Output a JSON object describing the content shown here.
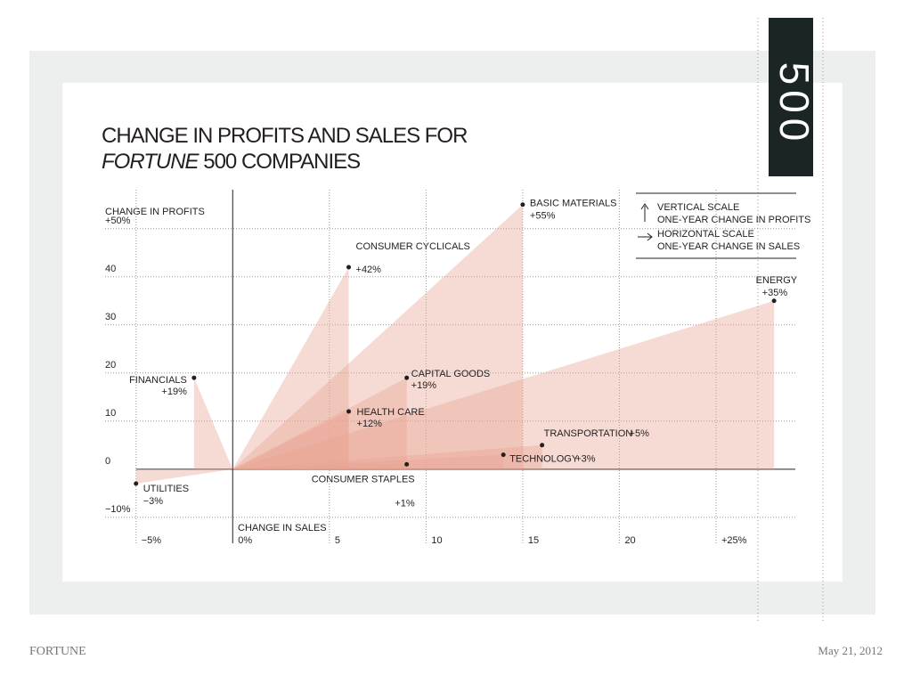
{
  "header": {
    "badge": "500"
  },
  "footer": {
    "brand": "FORTUNE",
    "date": "May 21, 2012"
  },
  "chart_data": {
    "type": "scatter",
    "title": "CHANGE IN PROFITS AND SALES FOR",
    "title_italic": "FORTUNE",
    "title_rest": "500 COMPANIES",
    "y_label": "CHANGE IN PROFITS",
    "x_label": "CHANGE IN SALES",
    "legend": [
      "VERTICAL SCALE",
      "ONE-YEAR CHANGE IN PROFITS",
      "HORIZONTAL SCALE",
      "ONE-YEAR CHANGE IN SALES"
    ],
    "color": "#e9a694",
    "categories": [
      "UTILITIES",
      "FINANCIALS",
      "CONSUMER CYCLICALS",
      "BASIC MATERIALS",
      "ENERGY",
      "CAPITAL GOODS",
      "HEALTH CARE",
      "CONSUMER STAPLES",
      "TRANSPORTATION",
      "TECHNOLOGY"
    ],
    "x": [
      -5,
      -2,
      6,
      15,
      28,
      9,
      6,
      9,
      16,
      14
    ],
    "values": [
      -3,
      19,
      42,
      55,
      35,
      19,
      12,
      1,
      5,
      3
    ],
    "value_labels": [
      "−3%",
      "+19%",
      "+42%",
      "+55%",
      "+35%",
      "+19%",
      "+12%",
      "+1%",
      "+5%",
      "+3%"
    ],
    "xlim": [
      -6.6,
      29.1
    ],
    "ylim": [
      -15.4,
      58.1
    ],
    "xticks": [
      {
        "value": -5,
        "label": "−5%"
      },
      {
        "value": 0,
        "label": "0%"
      },
      5,
      10,
      15,
      20,
      {
        "value": 25,
        "label": "+25%"
      }
    ],
    "yticks": [
      {
        "value": -10,
        "label": "−10%"
      },
      0,
      10,
      20,
      30,
      40,
      {
        "value": 50,
        "label": "+50%"
      }
    ],
    "grid": true
  }
}
